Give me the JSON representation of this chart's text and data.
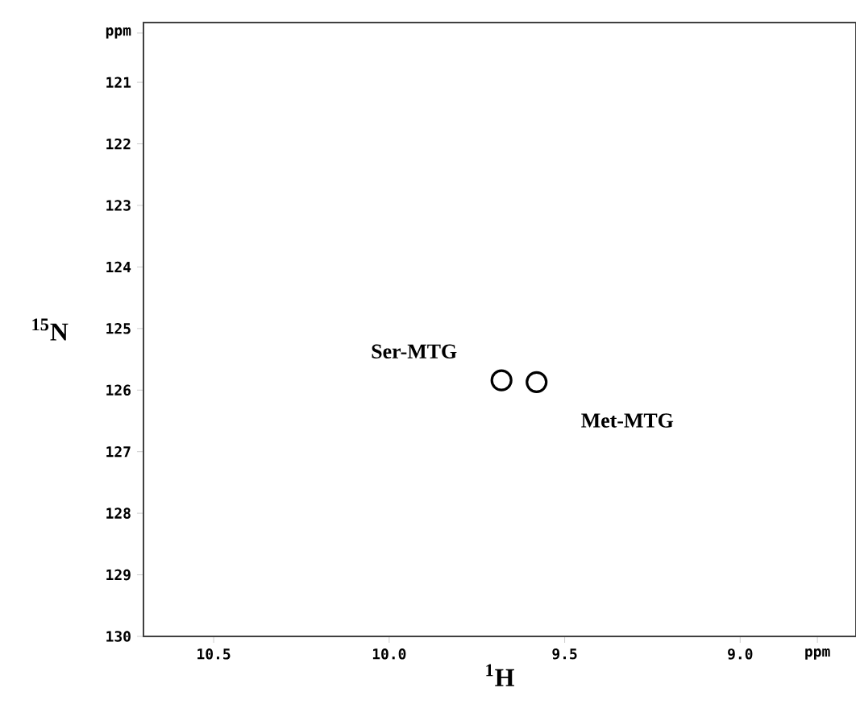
{
  "chart_data": {
    "type": "scatter",
    "xlabel": "$^{1}$H",
    "ylabel": "$^{15}$N",
    "x": [
      9.68,
      9.58
    ],
    "values": [
      125.84,
      125.87
    ],
    "color": "#000000",
    "marker": "circle",
    "xlim": [
      10.7,
      8.67
    ],
    "ylim": [
      130,
      120.03
    ],
    "xticks": [
      10.5,
      {
        "value": 10.0,
        "label": "10.0"
      },
      9.5,
      {
        "value": 9.0,
        "label": "9.0"
      },
      {
        "value": 8.78,
        "label": "ppm"
      }
    ],
    "yticks": [
      {
        "value": 120.2,
        "label": "ppm"
      },
      121,
      122,
      123,
      124,
      125,
      126,
      127,
      128,
      129,
      130
    ],
    "annotations": [
      "Ser-MTG",
      "Met-MTG"
    ],
    "grid": false
  }
}
